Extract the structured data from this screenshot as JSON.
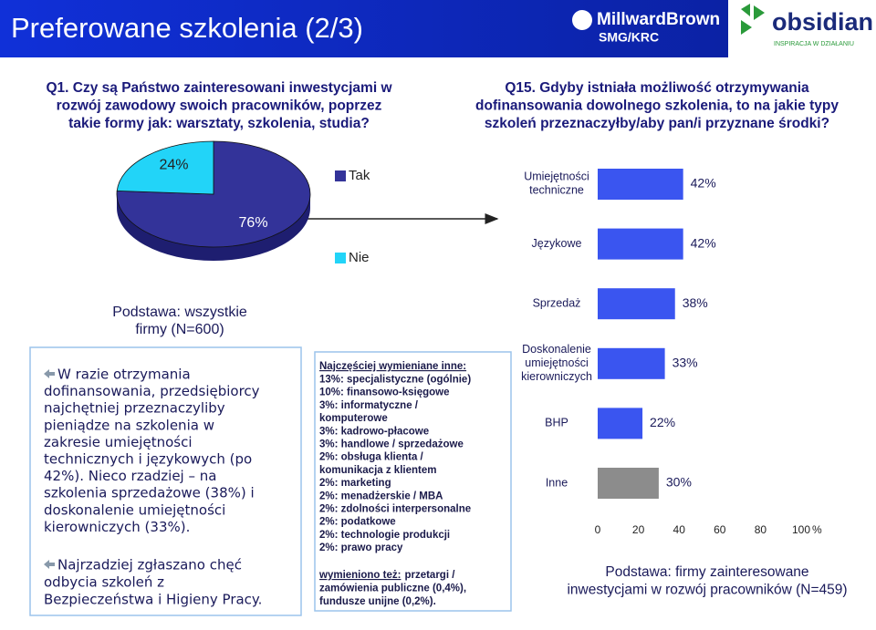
{
  "header": {
    "title": "Preferowane szkolenia (2/3)",
    "logo1": "MillwardBrown",
    "logo1_sub": "SMG/KRC",
    "logo2": "obsidian",
    "logo2_sub": "INSPIRACJA W DZIAŁANIU"
  },
  "q1": [
    "Q1. Czy są Państwo zainteresowani inwestycjami w",
    "rozwój zawodowy swoich pracowników, poprzez",
    "takie formy jak: warsztaty, szkolenia, studia?"
  ],
  "q15": [
    "Q15. Gdyby istniała możliwość otrzymywania",
    "dofinansowania dowolnego szkolenia, to na jakie typy",
    "szkoleń przeznaczyłby/aby pan/i przyznane środki?"
  ],
  "chart_data": [
    {
      "type": "pie",
      "categories": [
        "Tak",
        "Nie"
      ],
      "values": [
        76,
        24
      ],
      "value_labels": [
        "76%",
        "24%"
      ],
      "colors": [
        "#333399",
        "#22d4f8"
      ],
      "side_color": "#1e1e70",
      "caption": [
        "Podstawa: wszystkie",
        "firmy (N=600)"
      ]
    },
    {
      "type": "hbar",
      "categories": [
        "Umiejętności techniczne",
        "Językowe",
        "Sprzedaż",
        "Doskonalenie umiejętności kierowniczych",
        "BHP",
        "Inne"
      ],
      "values": [
        42,
        42,
        38,
        33,
        22,
        30
      ],
      "value_labels": [
        "42%",
        "42%",
        "38%",
        "33%",
        "22%",
        "30%"
      ],
      "colors": [
        "#3a55f0",
        "#3a55f0",
        "#3a55f0",
        "#3a55f0",
        "#3a55f0",
        "#8c8c8c"
      ],
      "xlim": [
        0,
        100
      ],
      "xticks": [
        0,
        20,
        40,
        60,
        80,
        100
      ],
      "x_unit": "%",
      "caption": [
        "Podstawa: firmy zainteresowane",
        "inwestycjami w rozwój pracowników (N=459)"
      ]
    }
  ],
  "summary": {
    "paragraph1": [
      "W razie otrzymania",
      "dofinansowania, przedsiębiorcy",
      "najchętniej przeznaczyliby",
      "pieniądze na szkolenia w",
      "zakresie umiejętności",
      "technicznych i językowych (po",
      "42%). Nieco rzadziej – na",
      "szkolenia sprzedażowe (38%) i",
      "doskonalenie umiejętności",
      "kierowniczych (33%)."
    ],
    "paragraph2": [
      "Najrzadziej zgłaszano chęć",
      "odbycia szkoleń z",
      "Bezpieczeństwa i Higieny Pracy."
    ]
  },
  "other": {
    "heading": "Najczęściej wymieniane inne:",
    "items": [
      "13%: specjalistyczne (ogólnie)",
      "10%: finansowo-księgowe",
      "3%: informatyczne /",
      "komputerowe",
      "3%: kadrowo-płacowe",
      "3%: handlowe / sprzedażowe",
      "2%: obsługa klienta /",
      "komunikacja z klientem",
      "2%: marketing",
      "2%: menadżerskie / MBA",
      "2%: zdolności interpersonalne",
      "2%: podatkowe",
      "2%: technologie produkcji",
      "2%: prawo pracy"
    ],
    "note_label": "wymieniono też:",
    "note_lines": [
      "przetargi /",
      "zamówienia publiczne (0,4%),",
      "fundusze unijne (0,2%)."
    ]
  }
}
